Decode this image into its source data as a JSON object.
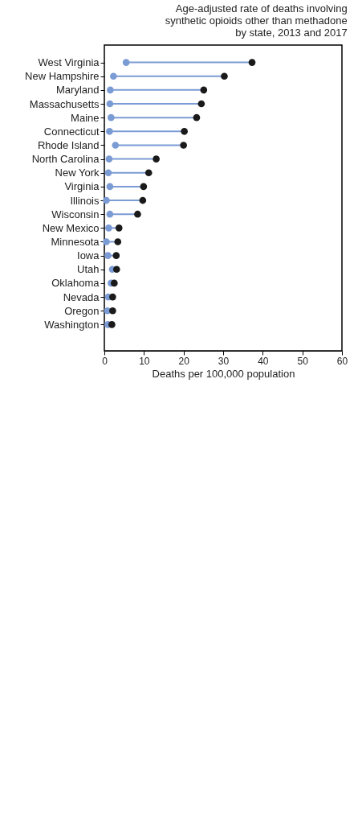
{
  "chart_data": {
    "type": "lollipop",
    "title": "Age-adjusted rate of deaths involving synthetic opioids other than methadone by state, 2013 and 2017",
    "xlabel": "Deaths per 100,000 population",
    "categories": [
      "West Virginia",
      "New Hampshire",
      "Maryland",
      "Massachusetts",
      "Maine",
      "Connecticut",
      "Rhode Island",
      "North Carolina",
      "New York",
      "Virginia",
      "Illinois",
      "Wisconsin",
      "New Mexico",
      "Minnesota",
      "Iowa",
      "Utah",
      "Oklahoma",
      "Nevada",
      "Oregon",
      "Washington"
    ],
    "series": [
      {
        "color": "#7b9bd4",
        "values": [
          5.5,
          2.3,
          1.5,
          1.4,
          1.7,
          1.3,
          2.8,
          1.2,
          1.0,
          1.4,
          0.5,
          1.4,
          1.1,
          0.5,
          0.9,
          2.0,
          1.7,
          1.0,
          0.8,
          0.9
        ]
      },
      {
        "color": "#1a1a1a",
        "values": [
          37.3,
          30.3,
          25.1,
          24.5,
          23.3,
          20.2,
          20.0,
          13.1,
          11.2,
          9.9,
          9.7,
          8.4,
          3.7,
          3.4,
          3.0,
          3.1,
          2.5,
          2.1,
          2.1,
          1.9
        ]
      }
    ],
    "xlim": [
      0,
      60
    ],
    "xticks": [
      0,
      10,
      20,
      30,
      40,
      50,
      60
    ],
    "grid": false,
    "orientation": "horizontal",
    "marker": "circle"
  }
}
